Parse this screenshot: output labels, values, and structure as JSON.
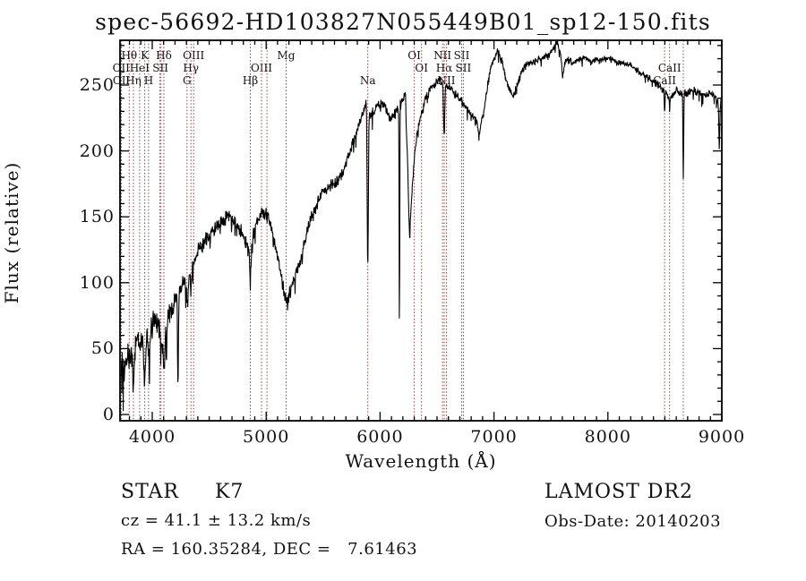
{
  "title": "spec-56692-HD103827N055449B01_sp12-150.fits",
  "footer": {
    "object_type": "STAR",
    "subclass": "K7",
    "survey": "LAMOST DR2",
    "velocity": "cz = 41.1 ± 13.2 km/s",
    "obs_date": "Obs-Date: 20140203",
    "coordinates": "RA = 160.35284, DEC =   7.61463"
  },
  "chart_data": {
    "type": "line",
    "series_name": "spectrum",
    "xlabel": "Wavelength (Å)",
    "ylabel": "Flux (relative)",
    "xlim": [
      3717,
      9008
    ],
    "ylim": [
      -5,
      284
    ],
    "x_ticks": [
      4000,
      5000,
      6000,
      7000,
      8000,
      9000
    ],
    "y_ticks": [
      0,
      50,
      100,
      150,
      200,
      250
    ],
    "x_minor_step": 100,
    "y_minor_step": 10,
    "grid": false,
    "trace_color": "#000000",
    "frame_color": "#000000",
    "marker_line_color": "#8b4444",
    "marked_wavelengths": [
      3727,
      3729,
      3798,
      3835,
      3889,
      3934,
      3968,
      4068,
      4076,
      4102,
      4305,
      4340,
      4363,
      4861,
      4959,
      5007,
      5175,
      5892,
      6300,
      6364,
      6548,
      6563,
      6583,
      6716,
      6731,
      8498,
      8542,
      8662
    ],
    "line_labels": [
      {
        "text": "Hθ",
        "wavelength": 3798,
        "row": 1
      },
      {
        "text": "K",
        "wavelength": 3934,
        "row": 1
      },
      {
        "text": "Hδ",
        "wavelength": 4102,
        "row": 1
      },
      {
        "text": "OIII",
        "wavelength": 4363,
        "row": 1
      },
      {
        "text": "Mg",
        "wavelength": 5175,
        "row": 1
      },
      {
        "text": "OI",
        "wavelength": 6300,
        "row": 1
      },
      {
        "text": "NII",
        "wavelength": 6548,
        "row": 1
      },
      {
        "text": "SII",
        "wavelength": 6716,
        "row": 1
      },
      {
        "text": "OII",
        "wavelength": 3727,
        "row": 2
      },
      {
        "text": "HeI",
        "wavelength": 3889,
        "row": 2
      },
      {
        "text": "SII",
        "wavelength": 4072,
        "row": 2
      },
      {
        "text": "Hγ",
        "wavelength": 4340,
        "row": 2
      },
      {
        "text": "OIII",
        "wavelength": 4959,
        "row": 2
      },
      {
        "text": "OI",
        "wavelength": 6364,
        "row": 2
      },
      {
        "text": "Hα",
        "wavelength": 6563,
        "row": 2
      },
      {
        "text": "SII",
        "wavelength": 6731,
        "row": 2
      },
      {
        "text": "CaII",
        "wavelength": 8542,
        "row": 2
      },
      {
        "text": "OII",
        "wavelength": 3729,
        "row": 3
      },
      {
        "text": "Hη",
        "wavelength": 3835,
        "row": 3
      },
      {
        "text": "H",
        "wavelength": 3968,
        "row": 3
      },
      {
        "text": "G",
        "wavelength": 4305,
        "row": 3
      },
      {
        "text": "Hβ",
        "wavelength": 4861,
        "row": 3
      },
      {
        "text": "Na",
        "wavelength": 5892,
        "row": 3
      },
      {
        "text": "NII",
        "wavelength": 6583,
        "row": 3
      },
      {
        "text": "CaII",
        "wavelength": 8498,
        "row": 3
      }
    ],
    "continuum": [
      [
        3717,
        2
      ],
      [
        3725,
        30
      ],
      [
        3740,
        35
      ],
      [
        3755,
        28
      ],
      [
        3770,
        42
      ],
      [
        3785,
        45
      ],
      [
        3800,
        40
      ],
      [
        3815,
        48
      ],
      [
        3830,
        45
      ],
      [
        3850,
        52
      ],
      [
        3870,
        58
      ],
      [
        3890,
        55
      ],
      [
        3912,
        60
      ],
      [
        3934,
        50
      ],
      [
        3955,
        62
      ],
      [
        3970,
        58
      ],
      [
        3990,
        66
      ],
      [
        4010,
        70
      ],
      [
        4030,
        72
      ],
      [
        4055,
        66
      ],
      [
        4080,
        58
      ],
      [
        4105,
        60
      ],
      [
        4130,
        68
      ],
      [
        4160,
        77
      ],
      [
        4195,
        86
      ],
      [
        4230,
        95
      ],
      [
        4265,
        100
      ],
      [
        4295,
        102
      ],
      [
        4330,
        108
      ],
      [
        4365,
        117
      ],
      [
        4400,
        123
      ],
      [
        4440,
        129
      ],
      [
        4480,
        134
      ],
      [
        4520,
        138
      ],
      [
        4560,
        141
      ],
      [
        4600,
        145
      ],
      [
        4640,
        149
      ],
      [
        4680,
        150
      ],
      [
        4720,
        147
      ],
      [
        4760,
        142
      ],
      [
        4800,
        136
      ],
      [
        4830,
        130
      ],
      [
        4861,
        124
      ],
      [
        4890,
        137
      ],
      [
        4920,
        147
      ],
      [
        4950,
        152
      ],
      [
        4980,
        153
      ],
      [
        5010,
        150
      ],
      [
        5040,
        143
      ],
      [
        5070,
        133
      ],
      [
        5100,
        121
      ],
      [
        5130,
        106
      ],
      [
        5160,
        92
      ],
      [
        5185,
        84
      ],
      [
        5210,
        93
      ],
      [
        5240,
        101
      ],
      [
        5270,
        109
      ],
      [
        5300,
        117
      ],
      [
        5340,
        131
      ],
      [
        5380,
        145
      ],
      [
        5420,
        155
      ],
      [
        5460,
        163
      ],
      [
        5500,
        169
      ],
      [
        5540,
        172
      ],
      [
        5580,
        175
      ],
      [
        5620,
        177
      ],
      [
        5660,
        182
      ],
      [
        5700,
        191
      ],
      [
        5740,
        201
      ],
      [
        5780,
        211
      ],
      [
        5820,
        221
      ],
      [
        5855,
        230
      ],
      [
        5885,
        237
      ],
      [
        5915,
        226
      ],
      [
        5945,
        231
      ],
      [
        5975,
        234
      ],
      [
        6010,
        236
      ],
      [
        6050,
        233
      ],
      [
        6090,
        224
      ],
      [
        6130,
        229
      ],
      [
        6170,
        234
      ],
      [
        6200,
        240
      ],
      [
        6222,
        242
      ],
      [
        6240,
        196
      ],
      [
        6258,
        137
      ],
      [
        6276,
        163
      ],
      [
        6300,
        194
      ],
      [
        6330,
        217
      ],
      [
        6365,
        228
      ],
      [
        6400,
        239
      ],
      [
        6440,
        247
      ],
      [
        6480,
        251
      ],
      [
        6520,
        254
      ],
      [
        6555,
        252
      ],
      [
        6600,
        249
      ],
      [
        6640,
        245
      ],
      [
        6680,
        241
      ],
      [
        6720,
        238
      ],
      [
        6760,
        232
      ],
      [
        6800,
        228
      ],
      [
        6840,
        224
      ],
      [
        6875,
        220
      ],
      [
        6905,
        227
      ],
      [
        6935,
        245
      ],
      [
        6965,
        260
      ],
      [
        7000,
        270
      ],
      [
        7035,
        276
      ],
      [
        7065,
        270
      ],
      [
        7100,
        257
      ],
      [
        7135,
        246
      ],
      [
        7170,
        242
      ],
      [
        7205,
        251
      ],
      [
        7240,
        260
      ],
      [
        7280,
        265
      ],
      [
        7320,
        267
      ],
      [
        7360,
        268
      ],
      [
        7400,
        270
      ],
      [
        7440,
        271
      ],
      [
        7480,
        273
      ],
      [
        7520,
        278
      ],
      [
        7555,
        283
      ],
      [
        7585,
        273
      ],
      [
        7615,
        268
      ],
      [
        7650,
        270
      ],
      [
        7690,
        267
      ],
      [
        7730,
        269
      ],
      [
        7770,
        270
      ],
      [
        7810,
        271
      ],
      [
        7850,
        267
      ],
      [
        7890,
        270
      ],
      [
        7930,
        268
      ],
      [
        7970,
        270
      ],
      [
        8010,
        270
      ],
      [
        8060,
        269
      ],
      [
        8110,
        267
      ],
      [
        8160,
        266
      ],
      [
        8210,
        264
      ],
      [
        8260,
        261
      ],
      [
        8310,
        258
      ],
      [
        8360,
        255
      ],
      [
        8410,
        252
      ],
      [
        8460,
        249
      ],
      [
        8510,
        243
      ],
      [
        8550,
        240
      ],
      [
        8600,
        246
      ],
      [
        8650,
        243
      ],
      [
        8700,
        244
      ],
      [
        8750,
        246
      ],
      [
        8800,
        244
      ],
      [
        8850,
        242
      ],
      [
        8900,
        244
      ],
      [
        8950,
        240
      ],
      [
        8995,
        236
      ]
    ],
    "absorption_dips": [
      [
        3835,
        15,
        6
      ],
      [
        3934,
        26,
        6
      ],
      [
        3969,
        40,
        6
      ],
      [
        4076,
        48,
        5
      ],
      [
        4102,
        38,
        7
      ],
      [
        4226,
        22,
        4
      ],
      [
        4305,
        88,
        9
      ],
      [
        4340,
        96,
        5
      ],
      [
        4861,
        106,
        7
      ],
      [
        5892,
        112,
        5
      ],
      [
        6170,
        60,
        2.5
      ],
      [
        6563,
        210,
        5
      ],
      [
        6870,
        213,
        8
      ],
      [
        7605,
        258,
        8
      ],
      [
        8498,
        232,
        3
      ],
      [
        8542,
        230,
        3
      ],
      [
        8662,
        180,
        3
      ],
      [
        8978,
        202,
        4
      ]
    ],
    "noise_profile": [
      [
        3717,
        20
      ],
      [
        3800,
        18
      ],
      [
        3900,
        14
      ],
      [
        4000,
        11
      ],
      [
        4150,
        11
      ],
      [
        4300,
        9
      ],
      [
        4500,
        8
      ],
      [
        4700,
        7
      ],
      [
        4900,
        7
      ],
      [
        5100,
        7
      ],
      [
        5300,
        6
      ],
      [
        5600,
        6
      ],
      [
        5900,
        5
      ],
      [
        6200,
        4.5
      ],
      [
        6500,
        4
      ],
      [
        6800,
        4
      ],
      [
        7100,
        3.5
      ],
      [
        7500,
        3.5
      ],
      [
        8000,
        3
      ],
      [
        8500,
        3.5
      ],
      [
        9000,
        4
      ]
    ]
  }
}
